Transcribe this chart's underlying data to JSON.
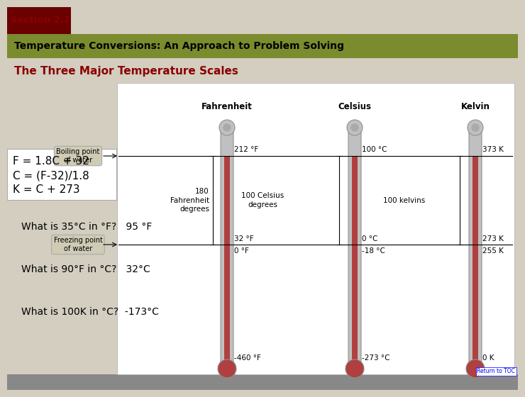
{
  "bg_color": "#d3cec0",
  "header_bar_color": "#7a8c2e",
  "section_label": "Section 2.7",
  "section_label_color": "#8b0000",
  "section_box_color": "#6b0000",
  "title": "Temperature Conversions: An Approach to Problem Solving",
  "subtitle": "The Three Major Temperature Scales",
  "subtitle_color": "#8b0000",
  "white_panel_color": "#ffffff",
  "thermo_labels": [
    "Fahrenheit",
    "Celsius",
    "Kelvin"
  ],
  "boiling_label": "Boiling point\nof water",
  "freezing_label": "Freezing point\nof water",
  "boiling_F": "212 °F",
  "boiling_C": "100 °C",
  "boiling_K": "373 K",
  "freezing_F1": "32 °F",
  "freezing_F2": "0 °F",
  "freezing_C1": "0 °C",
  "freezing_C2": "-18 °C",
  "freezing_K1": "273 K",
  "freezing_K2": "255 K",
  "bottom_F": "-460 °F",
  "bottom_C": "-273 °C",
  "bottom_K": "0 K",
  "mid_F": "180\nFahrenheit\ndegrees",
  "mid_C": "100 Celsius\ndegrees",
  "mid_K": "100 kelvins",
  "formula1": "F = 1.8C + 32",
  "formula2": "C = (F-32)/1.8",
  "formula3": "K = C + 273",
  "q1": "What is 35°C in °F?   95 °F",
  "q2": "What is 90°F in °C?   32°C",
  "q3": "What is 100K in °C?  -173°C",
  "return_toc": "Return to TOC",
  "gray_bar_color": "#888888",
  "label_box_color": "#d0cbb5",
  "thermo_gray": "#c0c0c0",
  "thermo_red": "#b04040",
  "thermo_outline": "#909090"
}
